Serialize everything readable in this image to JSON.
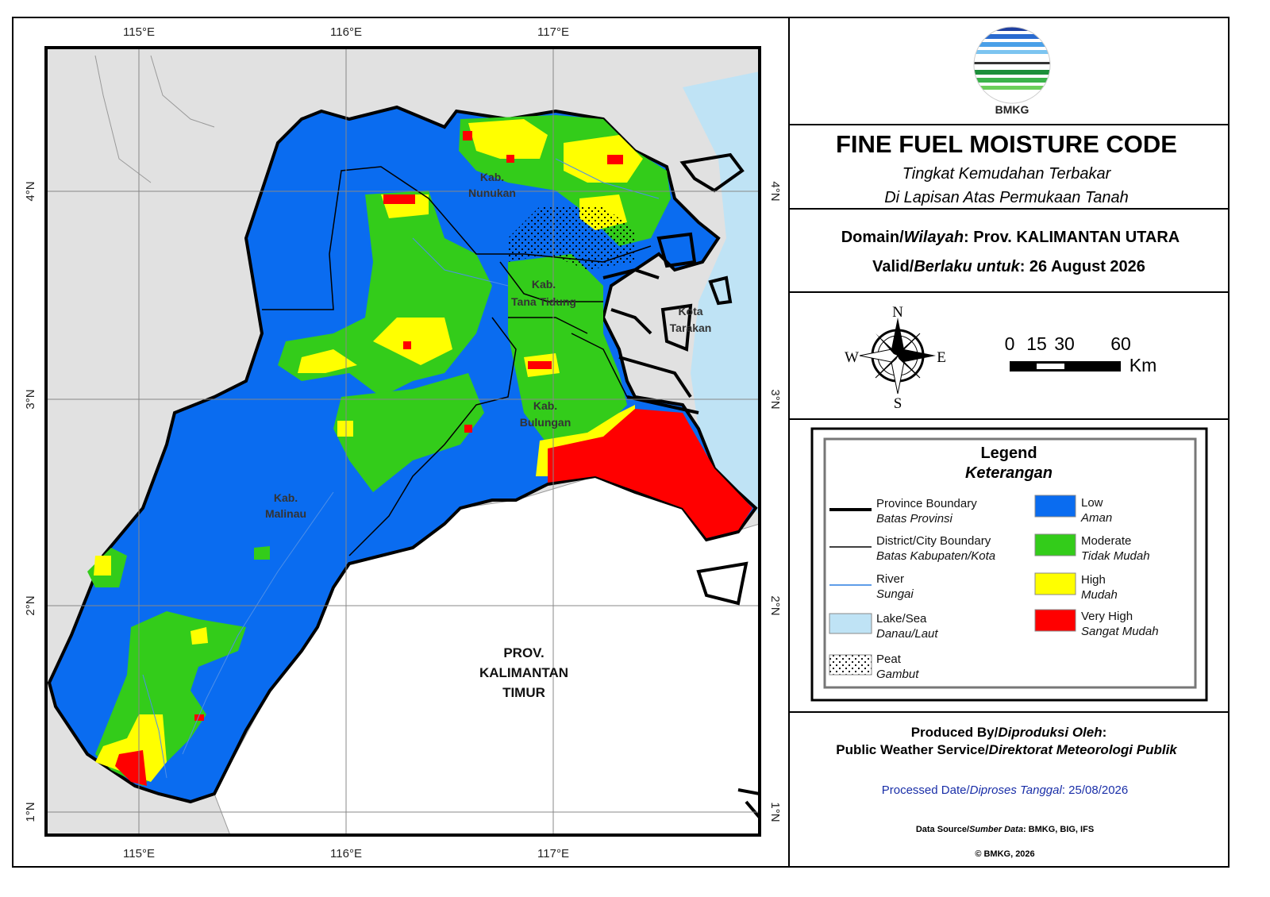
{
  "map": {
    "graticule": {
      "lon": [
        "115°E",
        "116°E",
        "117°E"
      ],
      "lat": [
        "4°N",
        "3°N",
        "2°N",
        "1°N"
      ]
    },
    "labels": [
      {
        "lines": [
          "Kab.",
          "Nunukan"
        ]
      },
      {
        "lines": [
          "Kab.",
          "Tana Tidung"
        ]
      },
      {
        "lines": [
          "Kota",
          "Tarakan"
        ]
      },
      {
        "lines": [
          "Kab.",
          "Bulungan"
        ]
      },
      {
        "lines": [
          "Kab.",
          "Malinau"
        ]
      },
      {
        "lines": [
          "PROV.",
          "KALIMANTAN",
          "TIMUR"
        ]
      }
    ]
  },
  "panel": {
    "logo": "BMKG",
    "title": "FINE FUEL MOISTURE CODE",
    "subtitle": [
      "Tingkat Kemudahan Terbakar",
      "Di Lapisan Atas Permukaan Tanah"
    ],
    "domain": [
      "Domain/",
      "Wilayah",
      ": Prov. KALIMANTAN UTARA"
    ],
    "valid": [
      "Valid/",
      "Berlaku untuk",
      ": 26 August 2026"
    ],
    "compass": {
      "n": "N",
      "e": "E",
      "s": "S",
      "w": "W"
    },
    "scale_bar": {
      "labels": [
        0,
        15,
        30,
        60
      ],
      "unit": "Km"
    },
    "legend": {
      "title": "Legend",
      "subtitle": "Keterangan",
      "items": [
        {
          "name": "Province Boundary",
          "local": "Batas Provinsi"
        },
        {
          "name": "District/City Boundary",
          "local": "Batas Kabupaten/Kota"
        },
        {
          "name": "River",
          "local": "Sungai"
        },
        {
          "name": "Lake/Sea",
          "local": "Danau/Laut"
        },
        {
          "name": "Peat",
          "local": "Gambut"
        },
        {
          "name": "Low",
          "local": "Aman",
          "color": "#0a6cf0"
        },
        {
          "name": "Moderate",
          "local": "Tidak Mudah",
          "color": "#33cc1a"
        },
        {
          "name": "High",
          "local": "Mudah",
          "color": "#ffff00"
        },
        {
          "name": "Very High",
          "local": "Sangat Mudah",
          "color": "#ff0000"
        }
      ]
    },
    "produced_by": {
      "line1": [
        "Produced By/",
        "Diproduksi Oleh",
        ":"
      ],
      "line2": [
        "Public Weather Service/",
        "Direktorat Meteorologi Publik"
      ]
    },
    "processed": [
      "Processed Date/",
      "Diproses Tanggal",
      ": 25/08/2026"
    ],
    "data_source": [
      "Data Source/",
      "Sumber Data",
      ": BMKG, BIG, IFS"
    ],
    "copyright": "© BMKG, 2026"
  }
}
